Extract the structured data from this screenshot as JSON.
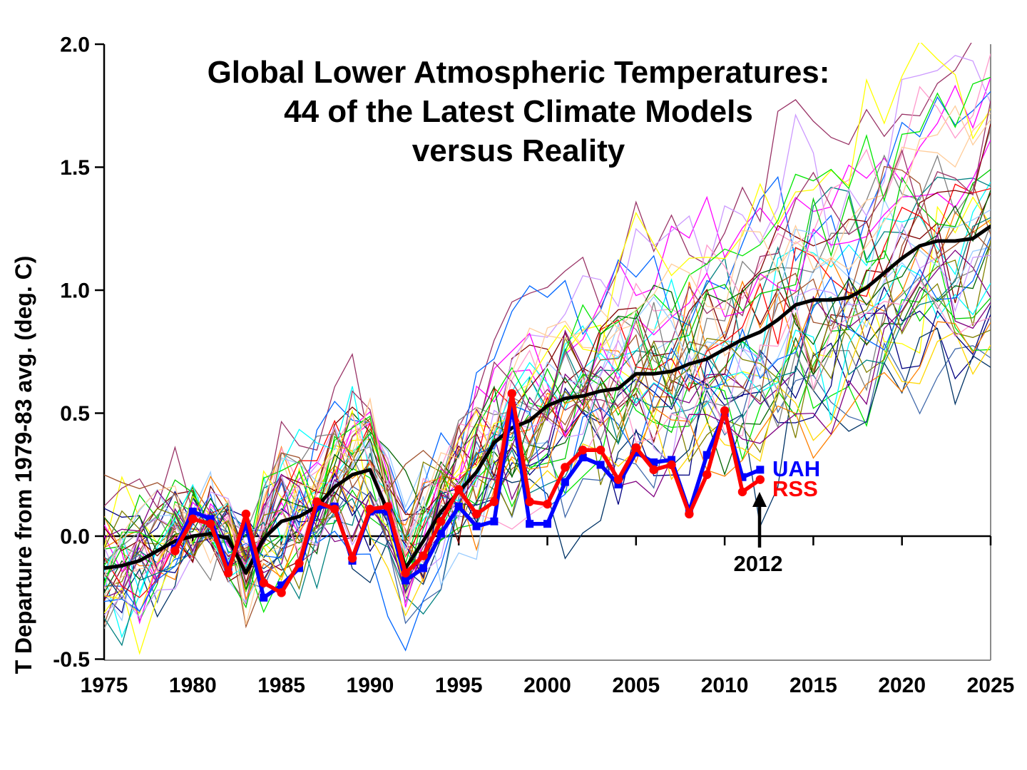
{
  "title": {
    "line1": "Global Lower Atmospheric Temperatures:",
    "line2": "44 of the Latest Climate Models",
    "line3": "versus Reality"
  },
  "axes": {
    "y_label": "T Departure from 1979-83 avg. (deg. C)",
    "y_ticks": [
      {
        "label": "2.0",
        "value": 2.0
      },
      {
        "label": "1.5",
        "value": 1.5
      },
      {
        "label": "1.0",
        "value": 1.0
      },
      {
        "label": "0.5",
        "value": 0.5
      },
      {
        "label": "0.0",
        "value": 0.0
      },
      {
        "label": "-0.5",
        "value": -0.5
      }
    ],
    "x_ticks": [
      {
        "label": "1975",
        "value": 1975
      },
      {
        "label": "1980",
        "value": 1980
      },
      {
        "label": "1985",
        "value": 1985
      },
      {
        "label": "1990",
        "value": 1990
      },
      {
        "label": "1995",
        "value": 1995
      },
      {
        "label": "2000",
        "value": 2000
      },
      {
        "label": "2005",
        "value": 2005
      },
      {
        "label": "2010",
        "value": 2010
      },
      {
        "label": "2015",
        "value": 2015
      },
      {
        "label": "2020",
        "value": 2020
      },
      {
        "label": "2025",
        "value": 2025
      }
    ]
  },
  "legend": {
    "uah": "UAH",
    "rss": "RSS"
  },
  "annotation": {
    "arrow_year_label": "2012",
    "arrow_year": 2012
  },
  "colors": {
    "uah": "#0000ff",
    "rss": "#ff0000",
    "model_average": "#000000",
    "frame_gray": "#8c8c8c",
    "background": "#ffffff"
  },
  "chart_data": {
    "type": "line",
    "title": "Global Lower Atmospheric Temperatures: 44 of the Latest Climate Models versus Reality",
    "xlabel": "",
    "ylabel": "T Departure from 1979-83 avg. (deg. C)",
    "xlim": [
      1975,
      2025
    ],
    "ylim": [
      -0.5,
      2.0
    ],
    "grid": false,
    "x_tick_step": 5,
    "y_tick_step": 0.5,
    "series": [
      {
        "name": "44-model average",
        "color": "#000000",
        "width": 5,
        "marker": "none",
        "x_start": 1975,
        "values": [
          -0.13,
          -0.12,
          -0.1,
          -0.06,
          -0.02,
          0.0,
          0.01,
          -0.01,
          -0.15,
          -0.01,
          0.06,
          0.08,
          0.12,
          0.2,
          0.25,
          0.27,
          0.1,
          -0.13,
          -0.02,
          0.1,
          0.18,
          0.26,
          0.38,
          0.44,
          0.47,
          0.53,
          0.56,
          0.57,
          0.59,
          0.6,
          0.66,
          0.66,
          0.67,
          0.7,
          0.72,
          0.76,
          0.8,
          0.83,
          0.88,
          0.94,
          0.96,
          0.96,
          0.97,
          1.01,
          1.07,
          1.13,
          1.18,
          1.2,
          1.2,
          1.21,
          1.26
        ]
      },
      {
        "name": "UAH",
        "color": "#0000ff",
        "width": 5.5,
        "marker": "square",
        "x_start": 1979,
        "values": [
          -0.05,
          0.1,
          0.07,
          -0.13,
          0.05,
          -0.25,
          -0.2,
          -0.13,
          0.12,
          0.12,
          -0.1,
          0.1,
          0.1,
          -0.18,
          -0.13,
          0.01,
          0.12,
          0.04,
          0.06,
          0.53,
          0.05,
          0.05,
          0.22,
          0.32,
          0.29,
          0.21,
          0.34,
          0.3,
          0.31,
          0.1,
          0.33,
          0.5,
          0.24,
          0.27
        ]
      },
      {
        "name": "RSS",
        "color": "#ff0000",
        "width": 5.5,
        "marker": "circle",
        "x_start": 1979,
        "values": [
          -0.06,
          0.07,
          0.05,
          -0.15,
          0.09,
          -0.19,
          -0.23,
          -0.11,
          0.14,
          0.11,
          -0.09,
          0.11,
          0.12,
          -0.15,
          -0.08,
          0.06,
          0.19,
          0.09,
          0.14,
          0.58,
          0.14,
          0.13,
          0.28,
          0.35,
          0.35,
          0.23,
          0.36,
          0.27,
          0.29,
          0.09,
          0.25,
          0.51,
          0.18,
          0.23
        ]
      }
    ],
    "ensemble": {
      "description": "44 individual climate-model runs drawn as thin multicolored spaghetti lines; anchored to the 44-model average, baseline-normalized to the 1979-83 mean, envelope approx -0.47..0.15 in 1975 widening to approx 0.6..1.9 by 2025",
      "count": 44,
      "seed": 20130610,
      "x_start": 1975,
      "x_end": 2025,
      "gain_min": 0.6,
      "gain_max": 1.48,
      "volatility": 0.125,
      "ar": 0.42,
      "baseline_years": [
        1979,
        1983
      ],
      "palette": [
        "#ff00ff",
        "#00ffff",
        "#ffff00",
        "#00cc00",
        "#000080",
        "#ff8000",
        "#800000",
        "#00e600",
        "#993366",
        "#99ccff",
        "#808080",
        "#008080",
        "#0066ff",
        "#cc99ff",
        "#a0522d",
        "#006400",
        "#808000",
        "#ff99cc",
        "#ffcc99",
        "#800080",
        "#ff0000",
        "#4169aa",
        "#003366",
        "#ffd700"
      ]
    }
  }
}
